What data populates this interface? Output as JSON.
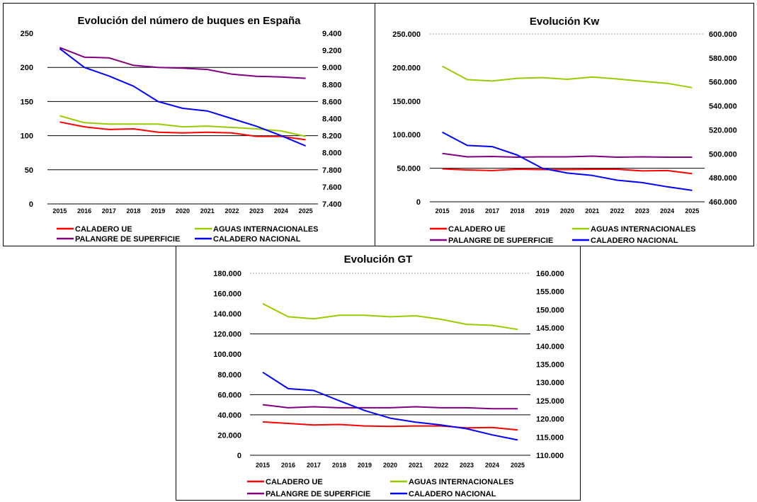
{
  "chart_data": [
    {
      "type": "line",
      "title": "Evolución del número de buques en España",
      "xlabel": "",
      "ylabel": "",
      "categories": [
        "2015",
        "2016",
        "2017",
        "2018",
        "2019",
        "2020",
        "2021",
        "2022",
        "2023",
        "2024",
        "2025"
      ],
      "ylim_left": [
        0,
        250
      ],
      "ylim_right": [
        7400,
        9400
      ],
      "left_ticks": [
        "0",
        "50",
        "100",
        "150",
        "200",
        "250"
      ],
      "right_ticks": [
        "7.400",
        "7.600",
        "7.800",
        "8.000",
        "8.200",
        "8.400",
        "8.600",
        "8.800",
        "9.000",
        "9.200",
        "9.400"
      ],
      "gridlines_left": [
        50,
        100,
        150,
        200
      ],
      "grid": true,
      "legend_position": "bottom",
      "series": [
        {
          "name": "CALADERO UE",
          "axis": "left",
          "color": "#ff0000",
          "values": [
            120,
            113,
            109,
            110,
            105,
            104,
            105,
            104,
            99,
            99,
            94
          ]
        },
        {
          "name": "AGUAS INTERNACIONALES",
          "axis": "left",
          "color": "#99cc00",
          "values": [
            129,
            119,
            117,
            117,
            117,
            113,
            114,
            112,
            110,
            107,
            99
          ]
        },
        {
          "name": "PALANGRE DE SUPERFICIE",
          "axis": "left",
          "color": "#800080",
          "values": [
            229,
            215,
            214,
            203,
            200,
            199,
            197,
            190,
            187,
            186,
            184
          ]
        },
        {
          "name": "CALADERO NACIONAL",
          "axis": "right",
          "color": "#0000ff",
          "values": [
            9220,
            9000,
            8900,
            8780,
            8600,
            8520,
            8490,
            8400,
            8310,
            8200,
            8080
          ]
        }
      ]
    },
    {
      "type": "line",
      "title": "Evolución Kw",
      "xlabel": "",
      "ylabel": "",
      "categories": [
        "2015",
        "2016",
        "2017",
        "2018",
        "2019",
        "2020",
        "2021",
        "2022",
        "2023",
        "2024",
        "2025"
      ],
      "ylim_left": [
        0,
        250000
      ],
      "ylim_right": [
        460000,
        600000
      ],
      "left_ticks": [
        "0",
        "50.000",
        "100.000",
        "150.000",
        "200.000",
        "250.000"
      ],
      "right_ticks": [
        "460.000",
        "480.000",
        "500.000",
        "520.000",
        "540.000",
        "560.000",
        "580.000",
        "600.000"
      ],
      "gridlines_left": [
        50000,
        250000
      ],
      "grid": true,
      "legend_position": "bottom",
      "series": [
        {
          "name": "CALADERO UE",
          "axis": "left",
          "color": "#ff0000",
          "values": [
            49000,
            47500,
            46500,
            48500,
            48000,
            48000,
            48500,
            48500,
            46000,
            46500,
            42000
          ]
        },
        {
          "name": "AGUAS INTERNACIONALES",
          "axis": "left",
          "color": "#99cc00",
          "values": [
            202000,
            182000,
            180000,
            184000,
            185000,
            182500,
            186000,
            183000,
            179500,
            176500,
            170000
          ]
        },
        {
          "name": "PALANGRE DE SUPERFICIE",
          "axis": "left",
          "color": "#800080",
          "values": [
            72000,
            67000,
            67500,
            66500,
            67000,
            67000,
            68000,
            66500,
            67000,
            66500,
            66500
          ]
        },
        {
          "name": "CALADERO NACIONAL",
          "axis": "right",
          "color": "#0000ff",
          "values": [
            518000,
            507000,
            506000,
            499000,
            488000,
            484000,
            482000,
            478000,
            476000,
            472500,
            469500
          ]
        }
      ]
    },
    {
      "type": "line",
      "title": "Evolución GT",
      "xlabel": "",
      "ylabel": "",
      "categories": [
        "2015",
        "2016",
        "2017",
        "2018",
        "2019",
        "2020",
        "2021",
        "2022",
        "2023",
        "2024",
        "2025"
      ],
      "ylim_left": [
        0,
        180000
      ],
      "ylim_right": [
        110000,
        160000
      ],
      "left_ticks": [
        "0",
        "20.000",
        "40.000",
        "60.000",
        "80.000",
        "100.000",
        "120.000",
        "140.000",
        "160.000",
        "180.000"
      ],
      "right_ticks": [
        "110.000",
        "115.000",
        "120.000",
        "125.000",
        "130.000",
        "135.000",
        "140.000",
        "145.000",
        "150.000",
        "155.000",
        "160.000"
      ],
      "gridlines_left": [
        40000,
        60000,
        120000,
        180000
      ],
      "grid": true,
      "legend_position": "bottom",
      "series": [
        {
          "name": "CALADERO UE",
          "axis": "left",
          "color": "#ff0000",
          "values": [
            33000,
            31500,
            30000,
            30500,
            29000,
            28500,
            29000,
            29000,
            27000,
            27500,
            25000
          ]
        },
        {
          "name": "AGUAS INTERNACIONALES",
          "axis": "left",
          "color": "#99cc00",
          "values": [
            150000,
            137000,
            135000,
            138500,
            138500,
            137000,
            138000,
            134500,
            129500,
            128500,
            124500
          ]
        },
        {
          "name": "PALANGRE DE SUPERFICIE",
          "axis": "left",
          "color": "#800080",
          "values": [
            50000,
            47000,
            48000,
            47000,
            47000,
            47000,
            48000,
            47000,
            47000,
            46000,
            46000
          ]
        },
        {
          "name": "CALADERO NACIONAL",
          "axis": "right",
          "color": "#0000ff",
          "values": [
            132800,
            128300,
            127800,
            125000,
            122300,
            120200,
            119100,
            118300,
            117300,
            115600,
            114200
          ]
        }
      ]
    }
  ]
}
